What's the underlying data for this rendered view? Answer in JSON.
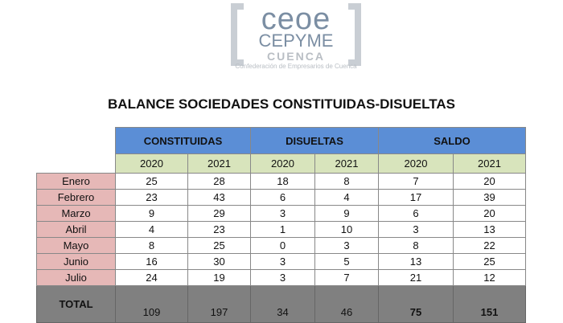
{
  "logo": {
    "line1": "ceoe",
    "line2": "CEPYME",
    "line3": "CUENCA",
    "tagline": "Confederación de Empresarios de Cuenca"
  },
  "title": "BALANCE SOCIEDADES CONSTITUIDAS-DISUELTAS",
  "groups": [
    "CONSTITUIDAS",
    "DISUELTAS",
    "SALDO"
  ],
  "years": [
    "2020",
    "2021",
    "2020",
    "2021",
    "2020",
    "2021"
  ],
  "rows": [
    {
      "month": "Enero",
      "v": [
        "25",
        "28",
        "18",
        "8",
        "7",
        "20"
      ]
    },
    {
      "month": "Febrero",
      "v": [
        "23",
        "43",
        "6",
        "4",
        "17",
        "39"
      ]
    },
    {
      "month": "Marzo",
      "v": [
        "9",
        "29",
        "3",
        "9",
        "6",
        "20"
      ]
    },
    {
      "month": "Abril",
      "v": [
        "4",
        "23",
        "1",
        "10",
        "3",
        "13"
      ]
    },
    {
      "month": "Mayo",
      "v": [
        "8",
        "25",
        "0",
        "3",
        "8",
        "22"
      ]
    },
    {
      "month": "Junio",
      "v": [
        "16",
        "30",
        "3",
        "5",
        "13",
        "25"
      ]
    },
    {
      "month": "Julio",
      "v": [
        "24",
        "19",
        "3",
        "7",
        "21",
        "12"
      ]
    }
  ],
  "total": {
    "label": "TOTAL",
    "v": [
      "109",
      "197",
      "34",
      "46",
      "75",
      "151"
    ]
  }
}
